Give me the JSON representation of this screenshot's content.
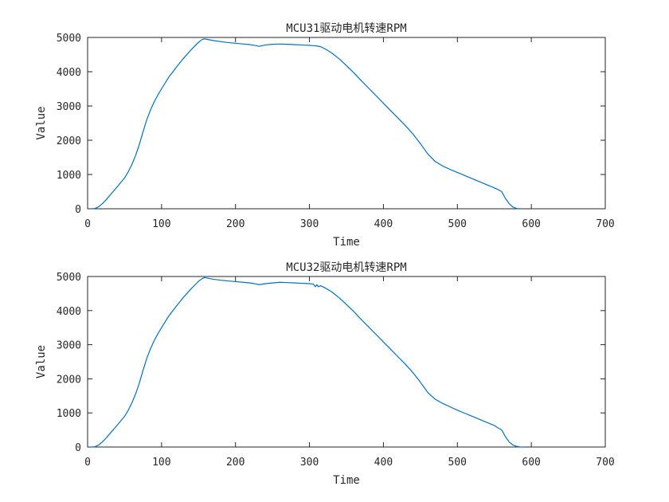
{
  "chart_data": [
    {
      "type": "line",
      "title": "MCU31驱动电机转速RPM",
      "xlabel": "Time",
      "ylabel": "Value",
      "xlim": [
        0,
        700
      ],
      "ylim": [
        0,
        5000
      ],
      "xticks": [
        0,
        100,
        200,
        300,
        400,
        500,
        600,
        700
      ],
      "yticks": [
        0,
        1000,
        2000,
        3000,
        4000,
        5000
      ],
      "grid": false,
      "line_color": "#0072BD",
      "series": [
        {
          "x": [
            5,
            10,
            15,
            20,
            25,
            30,
            40,
            50,
            55,
            60,
            65,
            70,
            75,
            80,
            85,
            90,
            95,
            100,
            110,
            120,
            130,
            140,
            150,
            155,
            158,
            160,
            170,
            180,
            190,
            200,
            210,
            220,
            228,
            232,
            240,
            250,
            260,
            270,
            280,
            290,
            300,
            305,
            310,
            315,
            320,
            330,
            340,
            350,
            360,
            370,
            380,
            390,
            400,
            410,
            420,
            430,
            440,
            450,
            460,
            470,
            480,
            490,
            500,
            510,
            520,
            530,
            540,
            550,
            555,
            560,
            565,
            570,
            575,
            580,
            583
          ],
          "y": [
            0,
            10,
            60,
            150,
            260,
            390,
            640,
            900,
            1080,
            1300,
            1560,
            1880,
            2250,
            2600,
            2880,
            3120,
            3320,
            3500,
            3850,
            4130,
            4400,
            4640,
            4860,
            4940,
            4960,
            4950,
            4910,
            4880,
            4850,
            4830,
            4810,
            4790,
            4760,
            4740,
            4780,
            4800,
            4810,
            4800,
            4790,
            4780,
            4770,
            4760,
            4750,
            4730,
            4680,
            4550,
            4380,
            4180,
            3970,
            3740,
            3520,
            3300,
            3080,
            2860,
            2640,
            2420,
            2180,
            1900,
            1600,
            1380,
            1250,
            1150,
            1060,
            970,
            880,
            790,
            700,
            610,
            560,
            500,
            300,
            150,
            50,
            10,
            0
          ]
        }
      ]
    },
    {
      "type": "line",
      "title": "MCU32驱动电机转速RPM",
      "xlabel": "Time",
      "ylabel": "Value",
      "xlim": [
        0,
        700
      ],
      "ylim": [
        0,
        5000
      ],
      "xticks": [
        0,
        100,
        200,
        300,
        400,
        500,
        600,
        700
      ],
      "yticks": [
        0,
        1000,
        2000,
        3000,
        4000,
        5000
      ],
      "grid": false,
      "line_color": "#0072BD",
      "series": [
        {
          "x": [
            2,
            5,
            10,
            15,
            20,
            25,
            30,
            40,
            50,
            55,
            60,
            65,
            70,
            75,
            80,
            85,
            90,
            95,
            100,
            110,
            120,
            130,
            140,
            150,
            155,
            158,
            160,
            170,
            180,
            190,
            200,
            210,
            220,
            228,
            232,
            240,
            250,
            260,
            270,
            280,
            290,
            300,
            305,
            308,
            310,
            312,
            315,
            320,
            330,
            340,
            350,
            360,
            370,
            380,
            390,
            400,
            410,
            420,
            430,
            440,
            450,
            460,
            470,
            480,
            490,
            500,
            510,
            520,
            530,
            540,
            550,
            555,
            560,
            565,
            570,
            575,
            580,
            585,
            590
          ],
          "y": [
            0,
            0,
            10,
            60,
            150,
            260,
            390,
            640,
            900,
            1080,
            1300,
            1560,
            1880,
            2250,
            2600,
            2880,
            3120,
            3320,
            3500,
            3850,
            4130,
            4400,
            4640,
            4860,
            4940,
            4970,
            4960,
            4920,
            4890,
            4870,
            4850,
            4830,
            4810,
            4780,
            4760,
            4790,
            4810,
            4830,
            4820,
            4810,
            4800,
            4790,
            4780,
            4700,
            4760,
            4700,
            4730,
            4680,
            4550,
            4380,
            4180,
            3970,
            3740,
            3520,
            3300,
            3080,
            2860,
            2640,
            2420,
            2180,
            1900,
            1600,
            1400,
            1280,
            1180,
            1080,
            990,
            900,
            810,
            720,
            630,
            560,
            500,
            300,
            150,
            60,
            20,
            0,
            0
          ]
        }
      ]
    }
  ]
}
